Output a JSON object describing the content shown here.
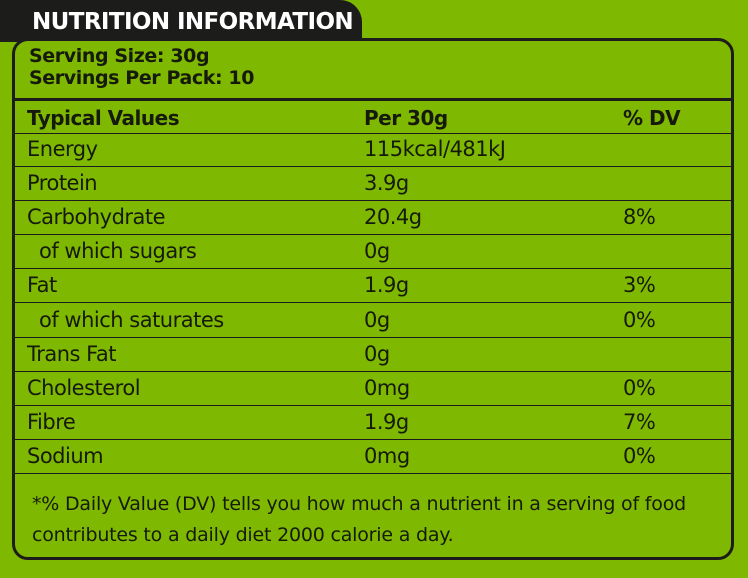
{
  "title": "NUTRITION INFORMATION",
  "serving": {
    "size": "Serving Size: 30g",
    "per_pack": "Servings Per Pack: 10"
  },
  "table": {
    "headers": {
      "name": "Typical Values",
      "per": "Per 30g",
      "dv": "% DV"
    },
    "rows": [
      {
        "name": "Energy",
        "per": "115kcal/481kJ",
        "dv": ""
      },
      {
        "name": "Protein",
        "per": "3.9g",
        "dv": ""
      },
      {
        "name": "Carbohydrate",
        "per": "20.4g",
        "dv": "8%"
      },
      {
        "name": "of which sugars",
        "per": "0g",
        "dv": ""
      },
      {
        "name": "Fat",
        "per": "1.9g",
        "dv": "3%"
      },
      {
        "name": "of which saturates",
        "per": "0g",
        "dv": "0%"
      },
      {
        "name": "Trans Fat",
        "per": "0g",
        "dv": ""
      },
      {
        "name": "Cholesterol",
        "per": "0mg",
        "dv": "0%"
      },
      {
        "name": "Fibre",
        "per": "1.9g",
        "dv": "7%"
      },
      {
        "name": "Sodium",
        "per": "0mg",
        "dv": "0%"
      }
    ]
  },
  "footnote": {
    "line1": "*% Daily Value (DV) tells you how much a nutrient in a serving of food",
    "line2": "contributes to a daily diet 2000 calorie a day."
  },
  "colors": {
    "background": "#7fb800",
    "dark": "#1c1d1b",
    "title_text": "#ffffff"
  }
}
